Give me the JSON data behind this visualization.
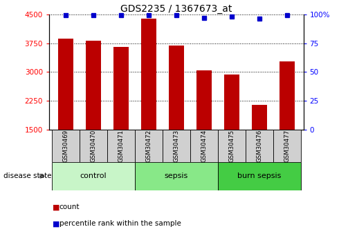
{
  "title": "GDS2235 / 1367673_at",
  "samples": [
    "GSM30469",
    "GSM30470",
    "GSM30471",
    "GSM30472",
    "GSM30473",
    "GSM30474",
    "GSM30475",
    "GSM30476",
    "GSM30477"
  ],
  "counts": [
    3870,
    3820,
    3650,
    4380,
    3680,
    3050,
    2940,
    2150,
    3280
  ],
  "percentiles": [
    99,
    99,
    99,
    99,
    99,
    97,
    98,
    96,
    99
  ],
  "ylim": [
    1500,
    4500
  ],
  "yticks": [
    1500,
    2250,
    3000,
    3750,
    4500
  ],
  "right_yticks": [
    0,
    25,
    50,
    75,
    100
  ],
  "right_ylim": [
    0,
    100
  ],
  "groups": [
    {
      "label": "control",
      "indices": [
        0,
        1,
        2
      ],
      "color": "#c8f5c8"
    },
    {
      "label": "sepsis",
      "indices": [
        3,
        4,
        5
      ],
      "color": "#88e888"
    },
    {
      "label": "burn sepsis",
      "indices": [
        6,
        7,
        8
      ],
      "color": "#44cc44"
    }
  ],
  "bar_color": "#bb0000",
  "dot_color": "#0000cc",
  "bar_width": 0.55,
  "sample_box_color": "#d0d0d0",
  "legend_count_color": "#bb0000",
  "legend_pct_color": "#0000cc",
  "disease_state_label": "disease state",
  "legend_count_label": "count",
  "legend_pct_label": "percentile rank within the sample"
}
